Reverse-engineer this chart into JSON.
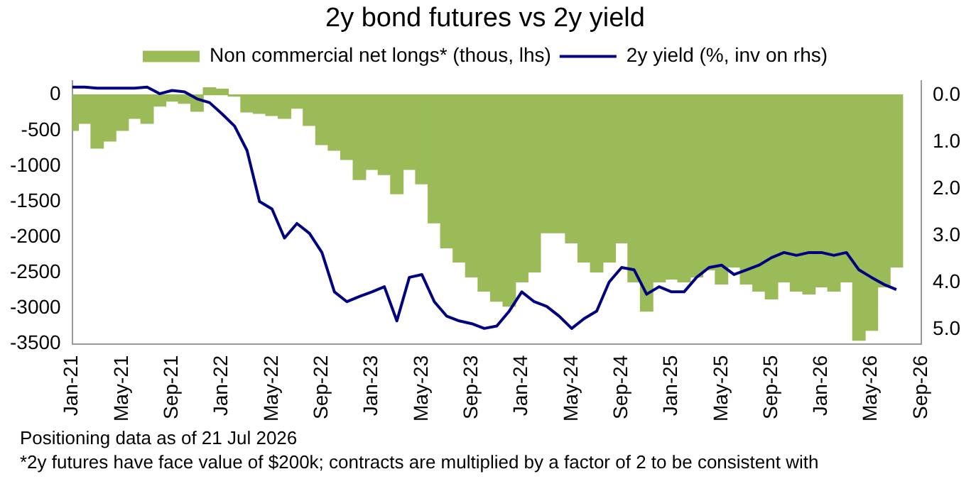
{
  "chart_data": {
    "type": "bar",
    "title": "2y bond futures vs 2y yield",
    "x": [
      "2021-01",
      "2021-02",
      "2021-03",
      "2021-04",
      "2021-05",
      "2021-06",
      "2021-07",
      "2021-08",
      "2021-09",
      "2021-10",
      "2021-11",
      "2021-12",
      "2022-01",
      "2022-02",
      "2022-03",
      "2022-04",
      "2022-05",
      "2022-06",
      "2022-07",
      "2022-08",
      "2022-09",
      "2022-10",
      "2022-11",
      "2022-12",
      "2023-01",
      "2023-02",
      "2023-03",
      "2023-04",
      "2023-05",
      "2023-06",
      "2023-07",
      "2023-08",
      "2023-09",
      "2023-10",
      "2023-11",
      "2023-12",
      "2024-01",
      "2024-02",
      "2024-03",
      "2024-04",
      "2024-05",
      "2024-06",
      "2024-07",
      "2024-08",
      "2024-09",
      "2024-10",
      "2024-11",
      "2024-12",
      "2025-01",
      "2025-02",
      "2025-03",
      "2025-04",
      "2025-05",
      "2025-06",
      "2025-07",
      "2025-08",
      "2025-09",
      "2025-10",
      "2025-11",
      "2025-12",
      "2026-01",
      "2026-02",
      "2026-03",
      "2026-04",
      "2026-05",
      "2026-06",
      "2026-07"
    ],
    "series": [
      {
        "name": "Non commercial net longs* (thous, lhs)",
        "color": "#9bbb59",
        "values": [
          -500,
          -400,
          -750,
          -650,
          -500,
          -330,
          -400,
          -160,
          -90,
          -120,
          -230,
          100,
          80,
          -20,
          -240,
          -260,
          -290,
          -330,
          -190,
          -430,
          -700,
          -780,
          -910,
          -1190,
          -1050,
          -1120,
          -1390,
          -1050,
          -1250,
          -1800,
          -2150,
          -2350,
          -2560,
          -2760,
          -2900,
          -2970,
          -2630,
          -2490,
          -1940,
          -1940,
          -2080,
          -2350,
          -2490,
          -2350,
          -2080,
          -2630,
          -3040,
          -2630,
          -2590,
          -2630,
          -2560,
          -2460,
          -2660,
          -2420,
          -2660,
          -2760,
          -2870,
          -2630,
          -2760,
          -2800,
          -2700,
          -2760,
          -2630,
          -3450,
          -3310,
          -2700,
          -2420
        ]
      },
      {
        "name": "2y yield (%, inv on rhs)",
        "type": "line",
        "axis": "y2",
        "color": "#000080",
        "values": [
          -0.17,
          -0.17,
          -0.15,
          -0.15,
          -0.15,
          -0.15,
          -0.17,
          -0.03,
          -0.1,
          -0.07,
          0.08,
          0.16,
          0.4,
          0.66,
          1.18,
          2.27,
          2.43,
          3.05,
          2.74,
          2.95,
          3.36,
          4.2,
          4.41,
          4.3,
          4.2,
          4.09,
          4.82,
          3.89,
          3.83,
          4.41,
          4.72,
          4.82,
          4.88,
          4.98,
          4.93,
          4.61,
          4.2,
          4.41,
          4.51,
          4.72,
          4.98,
          4.77,
          4.61,
          3.99,
          3.68,
          3.73,
          4.25,
          4.09,
          4.2,
          4.2,
          3.89,
          3.68,
          3.63,
          3.83,
          3.73,
          3.63,
          3.47,
          3.36,
          3.42,
          3.36,
          3.36,
          3.42,
          3.36,
          3.73,
          3.89,
          4.04,
          4.15
        ]
      }
    ],
    "xlim": [
      "2021-01",
      "2026-09"
    ],
    "xticks": [
      {
        "value": "2021-01",
        "label": "Jan-21"
      },
      {
        "value": "2021-05",
        "label": "May-21"
      },
      {
        "value": "2021-09",
        "label": "Sep-21"
      },
      {
        "value": "2022-01",
        "label": "Jan-22"
      },
      {
        "value": "2022-05",
        "label": "May-22"
      },
      {
        "value": "2022-09",
        "label": "Sep-22"
      },
      {
        "value": "2023-01",
        "label": "Jan-23"
      },
      {
        "value": "2023-05",
        "label": "May-23"
      },
      {
        "value": "2023-09",
        "label": "Sep-23"
      },
      {
        "value": "2024-01",
        "label": "Jan-24"
      },
      {
        "value": "2024-05",
        "label": "May-24"
      },
      {
        "value": "2024-09",
        "label": "Sep-24"
      },
      {
        "value": "2025-01",
        "label": "Jan-25"
      },
      {
        "value": "2025-05",
        "label": "May-25"
      },
      {
        "value": "2025-09",
        "label": "Sep-25"
      },
      {
        "value": "2026-01",
        "label": "Jan-26"
      },
      {
        "value": "2026-05",
        "label": "May-26"
      },
      {
        "value": "2026-09",
        "label": "Sep-26"
      }
    ],
    "ylim": [
      -3500,
      200
    ],
    "yticks": [
      0,
      -500,
      -1000,
      -1500,
      -2000,
      -2500,
      -3000,
      -3500
    ],
    "y2lim": [
      5.31,
      -0.31
    ],
    "y2ticks": [
      {
        "value": 0,
        "label": "0.0"
      },
      {
        "value": 1,
        "label": "1.0"
      },
      {
        "value": 2,
        "label": "2.0"
      },
      {
        "value": 3,
        "label": "3.0"
      },
      {
        "value": 4,
        "label": "4.0"
      },
      {
        "value": 5,
        "label": "5.0"
      }
    ],
    "grid": false,
    "legend": "top",
    "marker": "none",
    "line_style": "solid",
    "annotations": [
      "Positioning data as of 21 Jul 2026",
      "*2y futures have face value of $200k; contracts are multiplied by a factor of 2 to be consistent with"
    ]
  }
}
